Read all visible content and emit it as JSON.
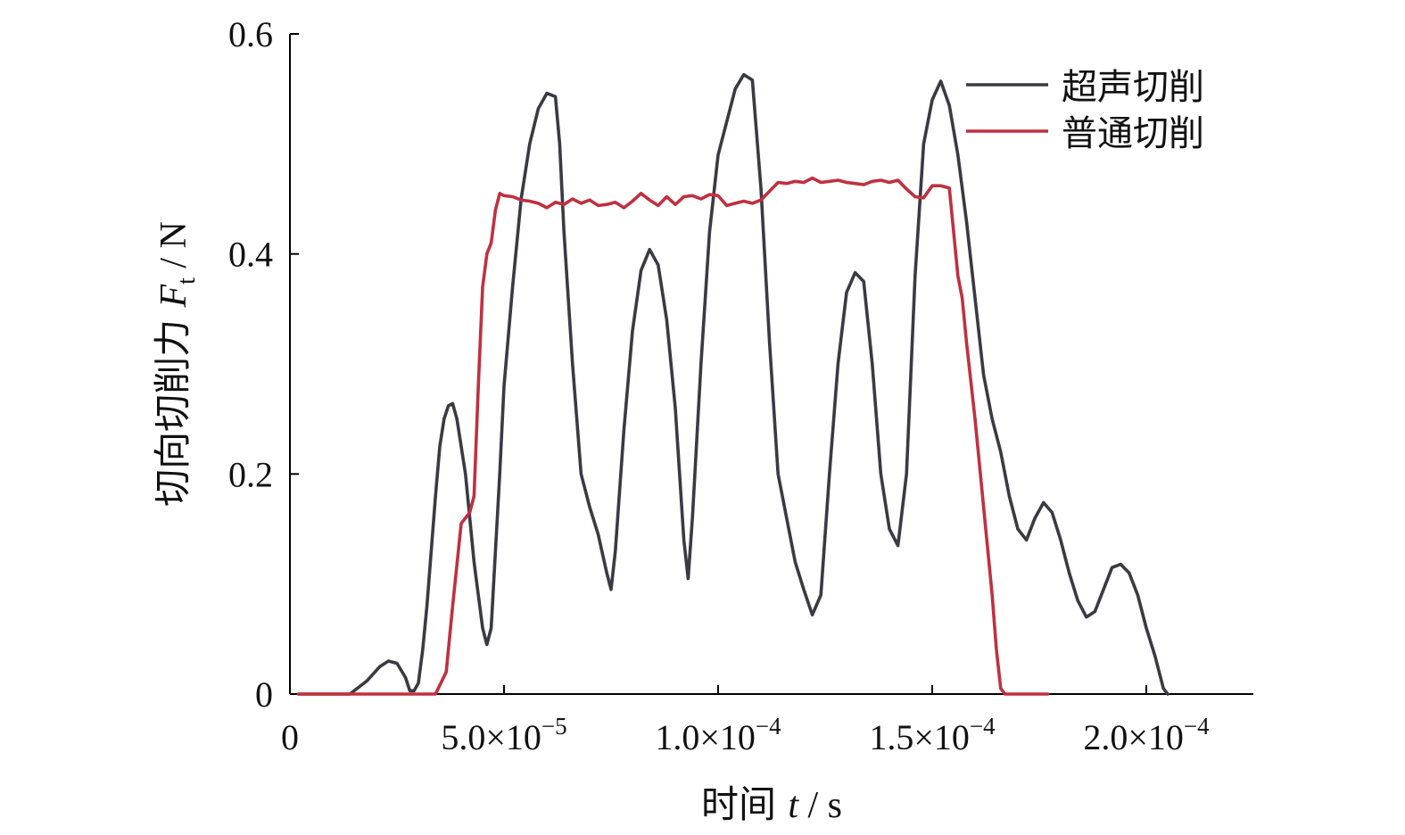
{
  "chart_data": {
    "type": "line",
    "xlabel_text": "时间 ",
    "xlabel_var": "t",
    "xlabel_unit": " / s",
    "ylabel_text": "切向切削力 ",
    "ylabel_var": "F",
    "ylabel_sub": "t",
    "ylabel_unit": " / N",
    "xlim": [
      0,
      0.000225
    ],
    "ylim": [
      0,
      0.6
    ],
    "x_ticks": [
      {
        "value": 0,
        "base": "0",
        "exp": ""
      },
      {
        "value": 5e-05,
        "base": "5.0×10",
        "exp": "−5"
      },
      {
        "value": 0.0001,
        "base": "1.0×10",
        "exp": "−4"
      },
      {
        "value": 0.00015,
        "base": "1.5×10",
        "exp": "−4"
      },
      {
        "value": 0.0002,
        "base": "2.0×10",
        "exp": "−4"
      }
    ],
    "y_ticks": [
      {
        "value": 0,
        "label": "0"
      },
      {
        "value": 0.2,
        "label": "0.2"
      },
      {
        "value": 0.4,
        "label": "0.4"
      },
      {
        "value": 0.6,
        "label": "0.6"
      }
    ],
    "legend_position": "top-right",
    "series": [
      {
        "name": "超声切削",
        "color": "#3a3a44",
        "points": [
          [
            2e-06,
            0
          ],
          [
            1.4e-05,
            0
          ],
          [
            1.8e-05,
            0.012
          ],
          [
            2.1e-05,
            0.025
          ],
          [
            2.3e-05,
            0.03
          ],
          [
            2.5e-05,
            0.028
          ],
          [
            2.7e-05,
            0.015
          ],
          [
            2.8e-05,
            0.003
          ],
          [
            2.9e-05,
            0.003
          ],
          [
            3e-05,
            0.01
          ],
          [
            3.1e-05,
            0.04
          ],
          [
            3.2e-05,
            0.08
          ],
          [
            3.3e-05,
            0.13
          ],
          [
            3.4e-05,
            0.18
          ],
          [
            3.5e-05,
            0.225
          ],
          [
            3.6e-05,
            0.25
          ],
          [
            3.7e-05,
            0.262
          ],
          [
            3.8e-05,
            0.264
          ],
          [
            3.9e-05,
            0.25
          ],
          [
            4e-05,
            0.225
          ],
          [
            4.1e-05,
            0.2
          ],
          [
            4.2e-05,
            0.16
          ],
          [
            4.3e-05,
            0.12
          ],
          [
            4.4e-05,
            0.09
          ],
          [
            4.5e-05,
            0.06
          ],
          [
            4.6e-05,
            0.045
          ],
          [
            4.7e-05,
            0.06
          ],
          [
            4.8e-05,
            0.13
          ],
          [
            4.9e-05,
            0.2
          ],
          [
            5e-05,
            0.28
          ],
          [
            5.2e-05,
            0.37
          ],
          [
            5.4e-05,
            0.45
          ],
          [
            5.6e-05,
            0.5
          ],
          [
            5.8e-05,
            0.532
          ],
          [
            6e-05,
            0.546
          ],
          [
            6.2e-05,
            0.543
          ],
          [
            6.3e-05,
            0.5
          ],
          [
            6.4e-05,
            0.42
          ],
          [
            6.6e-05,
            0.3
          ],
          [
            6.8e-05,
            0.2
          ],
          [
            7e-05,
            0.17
          ],
          [
            7.2e-05,
            0.145
          ],
          [
            7.4e-05,
            0.11
          ],
          [
            7.5e-05,
            0.095
          ],
          [
            7.6e-05,
            0.13
          ],
          [
            7.8e-05,
            0.24
          ],
          [
            8e-05,
            0.33
          ],
          [
            8.2e-05,
            0.385
          ],
          [
            8.4e-05,
            0.404
          ],
          [
            8.6e-05,
            0.39
          ],
          [
            8.8e-05,
            0.34
          ],
          [
            9e-05,
            0.26
          ],
          [
            9.2e-05,
            0.14
          ],
          [
            9.3e-05,
            0.105
          ],
          [
            9.4e-05,
            0.16
          ],
          [
            9.6e-05,
            0.3
          ],
          [
            9.8e-05,
            0.42
          ],
          [
            0.0001,
            0.49
          ],
          [
            0.000102,
            0.52
          ],
          [
            0.000104,
            0.55
          ],
          [
            0.000106,
            0.563
          ],
          [
            0.000108,
            0.558
          ],
          [
            0.00011,
            0.46
          ],
          [
            0.000112,
            0.32
          ],
          [
            0.000114,
            0.2
          ],
          [
            0.000116,
            0.16
          ],
          [
            0.000118,
            0.12
          ],
          [
            0.00012,
            0.095
          ],
          [
            0.000122,
            0.072
          ],
          [
            0.000124,
            0.09
          ],
          [
            0.000126,
            0.2
          ],
          [
            0.000128,
            0.3
          ],
          [
            0.00013,
            0.365
          ],
          [
            0.000132,
            0.383
          ],
          [
            0.000134,
            0.375
          ],
          [
            0.000136,
            0.3
          ],
          [
            0.000138,
            0.2
          ],
          [
            0.00014,
            0.15
          ],
          [
            0.000142,
            0.135
          ],
          [
            0.000144,
            0.2
          ],
          [
            0.000146,
            0.38
          ],
          [
            0.000148,
            0.5
          ],
          [
            0.00015,
            0.54
          ],
          [
            0.000152,
            0.557
          ],
          [
            0.000154,
            0.535
          ],
          [
            0.000156,
            0.49
          ],
          [
            0.000158,
            0.43
          ],
          [
            0.00016,
            0.36
          ],
          [
            0.000162,
            0.29
          ],
          [
            0.000164,
            0.25
          ],
          [
            0.000166,
            0.22
          ],
          [
            0.000168,
            0.18
          ],
          [
            0.00017,
            0.15
          ],
          [
            0.000172,
            0.14
          ],
          [
            0.000174,
            0.16
          ],
          [
            0.000176,
            0.174
          ],
          [
            0.000178,
            0.165
          ],
          [
            0.00018,
            0.14
          ],
          [
            0.000182,
            0.11
          ],
          [
            0.000184,
            0.085
          ],
          [
            0.000186,
            0.07
          ],
          [
            0.000188,
            0.075
          ],
          [
            0.00019,
            0.095
          ],
          [
            0.000192,
            0.115
          ],
          [
            0.000194,
            0.118
          ],
          [
            0.000196,
            0.11
          ],
          [
            0.000198,
            0.09
          ],
          [
            0.0002,
            0.06
          ],
          [
            0.000202,
            0.035
          ],
          [
            0.000203,
            0.02
          ],
          [
            0.000204,
            0.005
          ],
          [
            0.000205,
            0
          ]
        ]
      },
      {
        "name": "普通切削",
        "color": "#c03040",
        "points": [
          [
            2e-06,
            0
          ],
          [
            3.4e-05,
            0
          ],
          [
            3.65e-05,
            0.02
          ],
          [
            3.8e-05,
            0.08
          ],
          [
            4e-05,
            0.155
          ],
          [
            4.2e-05,
            0.165
          ],
          [
            4.3e-05,
            0.18
          ],
          [
            4.4e-05,
            0.28
          ],
          [
            4.5e-05,
            0.37
          ],
          [
            4.6e-05,
            0.4
          ],
          [
            4.7e-05,
            0.41
          ],
          [
            4.8e-05,
            0.44
          ],
          [
            4.9e-05,
            0.455
          ],
          [
            5e-05,
            0.453
          ],
          [
            5.2e-05,
            0.452
          ],
          [
            5.4e-05,
            0.449
          ],
          [
            5.6e-05,
            0.448
          ],
          [
            5.8e-05,
            0.446
          ],
          [
            6e-05,
            0.442
          ],
          [
            6.2e-05,
            0.447
          ],
          [
            6.4e-05,
            0.445
          ],
          [
            6.6e-05,
            0.45
          ],
          [
            6.8e-05,
            0.446
          ],
          [
            7e-05,
            0.449
          ],
          [
            7.2e-05,
            0.444
          ],
          [
            7.4e-05,
            0.445
          ],
          [
            7.6e-05,
            0.447
          ],
          [
            7.8e-05,
            0.442
          ],
          [
            8e-05,
            0.448
          ],
          [
            8.2e-05,
            0.455
          ],
          [
            8.4e-05,
            0.449
          ],
          [
            8.6e-05,
            0.444
          ],
          [
            8.8e-05,
            0.452
          ],
          [
            9e-05,
            0.445
          ],
          [
            9.2e-05,
            0.452
          ],
          [
            9.4e-05,
            0.453
          ],
          [
            9.6e-05,
            0.45
          ],
          [
            9.8e-05,
            0.454
          ],
          [
            0.0001,
            0.453
          ],
          [
            0.000102,
            0.444
          ],
          [
            0.000104,
            0.446
          ],
          [
            0.000106,
            0.448
          ],
          [
            0.000108,
            0.446
          ],
          [
            0.00011,
            0.449
          ],
          [
            0.000112,
            0.457
          ],
          [
            0.000114,
            0.465
          ],
          [
            0.000116,
            0.464
          ],
          [
            0.000118,
            0.466
          ],
          [
            0.00012,
            0.465
          ],
          [
            0.000122,
            0.469
          ],
          [
            0.000124,
            0.465
          ],
          [
            0.000126,
            0.466
          ],
          [
            0.000128,
            0.467
          ],
          [
            0.00013,
            0.465
          ],
          [
            0.000132,
            0.464
          ],
          [
            0.000134,
            0.463
          ],
          [
            0.000136,
            0.466
          ],
          [
            0.000138,
            0.467
          ],
          [
            0.00014,
            0.465
          ],
          [
            0.000142,
            0.467
          ],
          [
            0.000144,
            0.459
          ],
          [
            0.000146,
            0.452
          ],
          [
            0.000148,
            0.451
          ],
          [
            0.00015,
            0.462
          ],
          [
            0.000152,
            0.462
          ],
          [
            0.000154,
            0.46
          ],
          [
            0.000155,
            0.42
          ],
          [
            0.000156,
            0.38
          ],
          [
            0.000157,
            0.36
          ],
          [
            0.000158,
            0.32
          ],
          [
            0.00016,
            0.25
          ],
          [
            0.000162,
            0.17
          ],
          [
            0.000164,
            0.09
          ],
          [
            0.000165,
            0.04
          ],
          [
            0.000166,
            0.005
          ],
          [
            0.000167,
            0
          ],
          [
            0.000177,
            0
          ]
        ]
      }
    ]
  }
}
